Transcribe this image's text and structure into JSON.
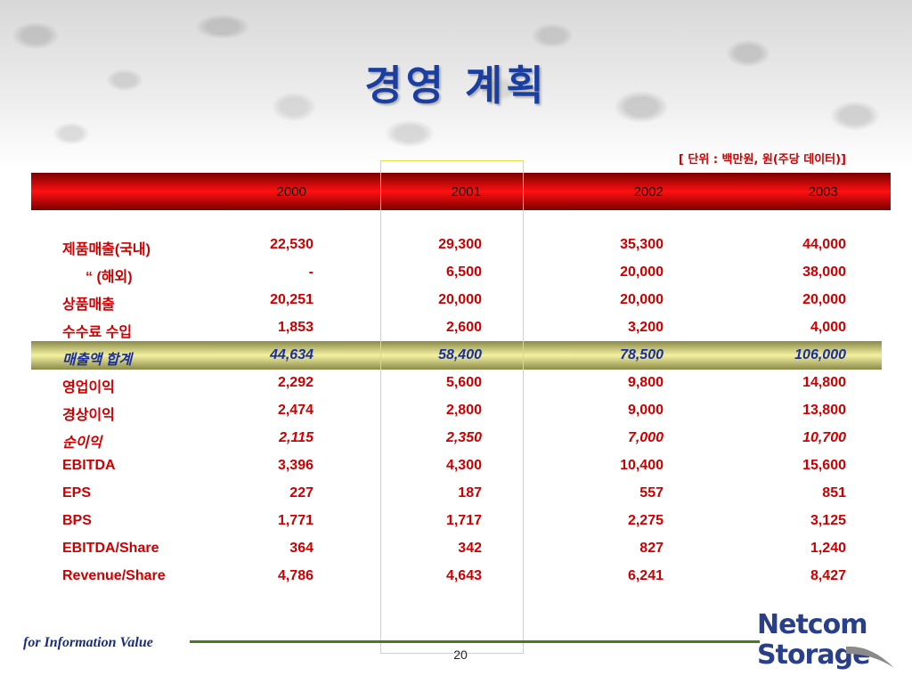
{
  "slide": {
    "title": "경영 계획",
    "unit_note": "[ 단위 :  백만원, 원(주당 데이터)]",
    "years": [
      "2000",
      "2001",
      "2002",
      "2003"
    ],
    "rows": [
      {
        "label": "제품매출(국내)",
        "values": [
          "22,530",
          "29,300",
          "35,300",
          "44,000"
        ],
        "style": "normal"
      },
      {
        "label": "“       (해외)",
        "values": [
          "-",
          "6,500",
          "20,000",
          "38,000"
        ],
        "style": "quote"
      },
      {
        "label": "상품매출",
        "values": [
          "20,251",
          "20,000",
          "20,000",
          "20,000"
        ],
        "style": "normal"
      },
      {
        "label": "수수료 수입",
        "values": [
          "1,853",
          "2,600",
          "3,200",
          "4,000"
        ],
        "style": "normal"
      },
      {
        "label": "매출액 합계",
        "values": [
          "44,634",
          "58,400",
          "78,500",
          "106,000"
        ],
        "style": "total"
      },
      {
        "label": "영업이익",
        "values": [
          "2,292",
          "5,600",
          "9,800",
          "14,800"
        ],
        "style": "normal"
      },
      {
        "label": "경상이익",
        "values": [
          "2,474",
          "2,800",
          "9,000",
          "13,800"
        ],
        "style": "normal"
      },
      {
        "label": "순이익",
        "values": [
          "2,115",
          "2,350",
          "7,000",
          "10,700"
        ],
        "style": "italic"
      },
      {
        "label": "EBITDA",
        "values": [
          "3,396",
          "4,300",
          "10,400",
          "15,600"
        ],
        "style": "normal"
      },
      {
        "label": "EPS",
        "values": [
          "227",
          "187",
          "557",
          "851"
        ],
        "style": "normal"
      },
      {
        "label": "BPS",
        "values": [
          "1,771",
          "1,717",
          "2,275",
          "3,125"
        ],
        "style": "normal"
      },
      {
        "label": "EBITDA/Share",
        "values": [
          "364",
          "342",
          "827",
          "1,240"
        ],
        "style": "normal"
      },
      {
        "label": "Revenue/Share",
        "values": [
          "4,786",
          "4,643",
          "6,241",
          "8,427"
        ],
        "style": "normal"
      }
    ],
    "footer_text": "for Information Value",
    "page_number": "20",
    "logo": {
      "line1": "Netcom",
      "line2": "Storage"
    }
  },
  "colors": {
    "title": "#1a3fa0",
    "row_text": "#cc0000",
    "total_text": "#1a2ea0",
    "header_bar": "#ff1010",
    "highlight": "#f4f2a0",
    "footer_line": "#4a7a1a"
  }
}
